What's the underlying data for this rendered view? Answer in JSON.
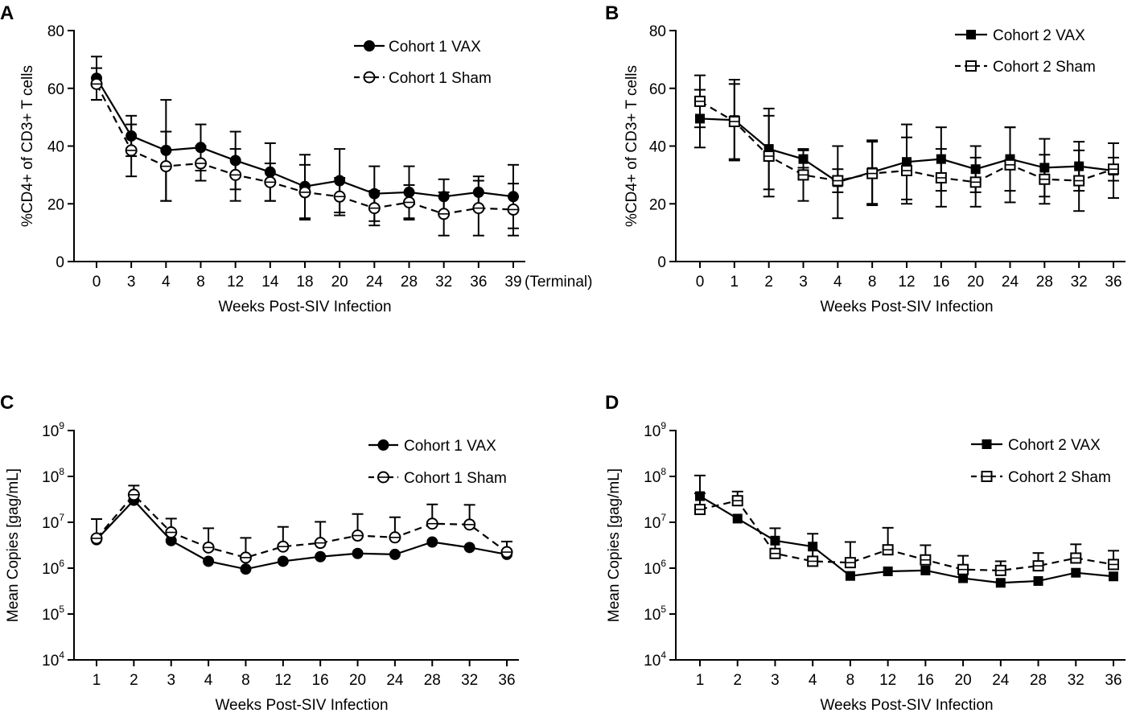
{
  "figure": {
    "colors": {
      "ink": "#000000",
      "background": "#ffffff"
    }
  },
  "chart_data": [
    {
      "panel": "A",
      "type": "line",
      "yscale": "linear",
      "ylim": [
        0,
        80
      ],
      "yticks": [
        "0",
        "20",
        "40",
        "60",
        "80"
      ],
      "ylabel": "%CD4+ of CD3+ T cells",
      "xlabel": "Weeks Post-SIV Infection",
      "categories": [
        "0",
        "3",
        "4",
        "8",
        "12",
        "14",
        "18",
        "20",
        "24",
        "28",
        "32",
        "36",
        "39"
      ],
      "x_annotation": "(Terminal)",
      "legend_position": "top-right",
      "series": [
        {
          "name": "Cohort 1 VAX",
          "marker": "filled-circle",
          "line": "solid",
          "values": [
            63.5,
            43.5,
            38.5,
            39.5,
            35.0,
            31.0,
            26.0,
            28.0,
            23.5,
            24.0,
            22.5,
            24.0,
            22.5
          ],
          "err": [
            7.5,
            7.0,
            17.5,
            8.0,
            10.0,
            10.0,
            11.0,
            11.0,
            9.5,
            9.0,
            6.0,
            5.5,
            11.0
          ]
        },
        {
          "name": "Cohort 1 Sham",
          "marker": "open-circle",
          "line": "dashed",
          "values": [
            61.5,
            38.5,
            33.0,
            34.0,
            30.0,
            27.5,
            24.0,
            22.5,
            18.5,
            20.5,
            16.5,
            18.5,
            18.0
          ],
          "err": [
            5.5,
            9.0,
            12.0,
            6.0,
            9.0,
            6.5,
            9.5,
            6.5,
            6.0,
            6.0,
            7.5,
            9.5,
            9.0
          ]
        }
      ]
    },
    {
      "panel": "B",
      "type": "line",
      "yscale": "linear",
      "ylim": [
        0,
        80
      ],
      "yticks": [
        "0",
        "20",
        "40",
        "60",
        "80"
      ],
      "ylabel": "%CD4+ of CD3+ T cells",
      "xlabel": "Weeks Post-SIV Infection",
      "categories": [
        "0",
        "1",
        "2",
        "3",
        "4",
        "8",
        "12",
        "16",
        "20",
        "24",
        "28",
        "32",
        "36"
      ],
      "legend_position": "top-right",
      "series": [
        {
          "name": "Cohort 2 VAX",
          "marker": "filled-square",
          "line": "solid",
          "values": [
            49.5,
            49.0,
            39.0,
            35.5,
            27.5,
            31.0,
            34.5,
            35.5,
            32.0,
            35.5,
            32.5,
            33.0,
            31.5
          ],
          "err": [
            10.0,
            14.0,
            14.0,
            3.0,
            12.5,
            11.0,
            13.0,
            11.0,
            8.0,
            11.0,
            10.0,
            8.5,
            9.5
          ]
        },
        {
          "name": "Cohort 2 Sham",
          "marker": "open-square",
          "line": "dashed",
          "values": [
            55.5,
            48.5,
            36.5,
            30.0,
            28.0,
            30.5,
            31.5,
            29.0,
            27.5,
            33.5,
            28.5,
            28.0,
            32.0
          ],
          "err": [
            9.0,
            13.0,
            14.0,
            9.0,
            4.0,
            11.0,
            11.5,
            10.0,
            8.5,
            13.0,
            8.5,
            10.5,
            4.0
          ]
        }
      ]
    },
    {
      "panel": "C",
      "type": "line",
      "yscale": "log",
      "ylim_exp": [
        4,
        9
      ],
      "yticks": [
        "10^4",
        "10^5",
        "10^6",
        "10^7",
        "10^8",
        "10^9"
      ],
      "ylabel": "Mean Copies [gag/mL]",
      "xlabel": "Weeks Post-SIV Infection",
      "categories": [
        "1",
        "2",
        "3",
        "4",
        "8",
        "12",
        "16",
        "20",
        "24",
        "28",
        "32",
        "36"
      ],
      "legend_position": "top-right",
      "series": [
        {
          "name": "Cohort 1 VAX",
          "marker": "filled-circle",
          "line": "solid",
          "values_log10": [
            6.62,
            7.48,
            6.6,
            6.15,
            5.98,
            6.15,
            6.25,
            6.32,
            6.3,
            6.57,
            6.45,
            6.3
          ]
        },
        {
          "name": "Cohort 1 Sham",
          "marker": "open-circle",
          "line": "dashed",
          "values_log10": [
            6.65,
            7.6,
            6.78,
            6.45,
            6.23,
            6.47,
            6.55,
            6.71,
            6.67,
            6.97,
            6.95,
            6.35
          ],
          "err_log10": [
            0.42,
            0.2,
            0.3,
            0.42,
            0.43,
            0.43,
            0.46,
            0.47,
            0.44,
            0.42,
            0.43,
            0.23
          ]
        }
      ]
    },
    {
      "panel": "D",
      "type": "line",
      "yscale": "log",
      "ylim_exp": [
        4,
        9
      ],
      "yticks": [
        "10^4",
        "10^5",
        "10^6",
        "10^7",
        "10^8",
        "10^9"
      ],
      "ylabel": "Mean Copies [gag/mL]",
      "xlabel": "Weeks Post-SIV Infection",
      "categories": [
        "1",
        "2",
        "3",
        "4",
        "8",
        "12",
        "16",
        "20",
        "24",
        "28",
        "32",
        "36"
      ],
      "legend_position": "top-right",
      "series": [
        {
          "name": "Cohort 2 VAX",
          "marker": "filled-square",
          "line": "solid",
          "values_log10": [
            7.57,
            7.08,
            6.6,
            6.47,
            5.83,
            5.93,
            5.95,
            5.78,
            5.68,
            5.72,
            5.9,
            5.82
          ],
          "err_log10": [
            0.45,
            0.0,
            0.0,
            0.0,
            0.0,
            0.0,
            0.0,
            0.0,
            0.0,
            0.0,
            0.0,
            0.0
          ]
        },
        {
          "name": "Cohort 2 Sham",
          "marker": "open-square",
          "line": "dashed",
          "values_log10": [
            7.28,
            7.47,
            6.32,
            6.15,
            6.12,
            6.4,
            6.18,
            5.97,
            5.95,
            6.05,
            6.22,
            6.08
          ],
          "err_log10": [
            0.35,
            0.2,
            0.55,
            0.6,
            0.45,
            0.48,
            0.32,
            0.3,
            0.2,
            0.28,
            0.3,
            0.3
          ]
        }
      ]
    }
  ]
}
